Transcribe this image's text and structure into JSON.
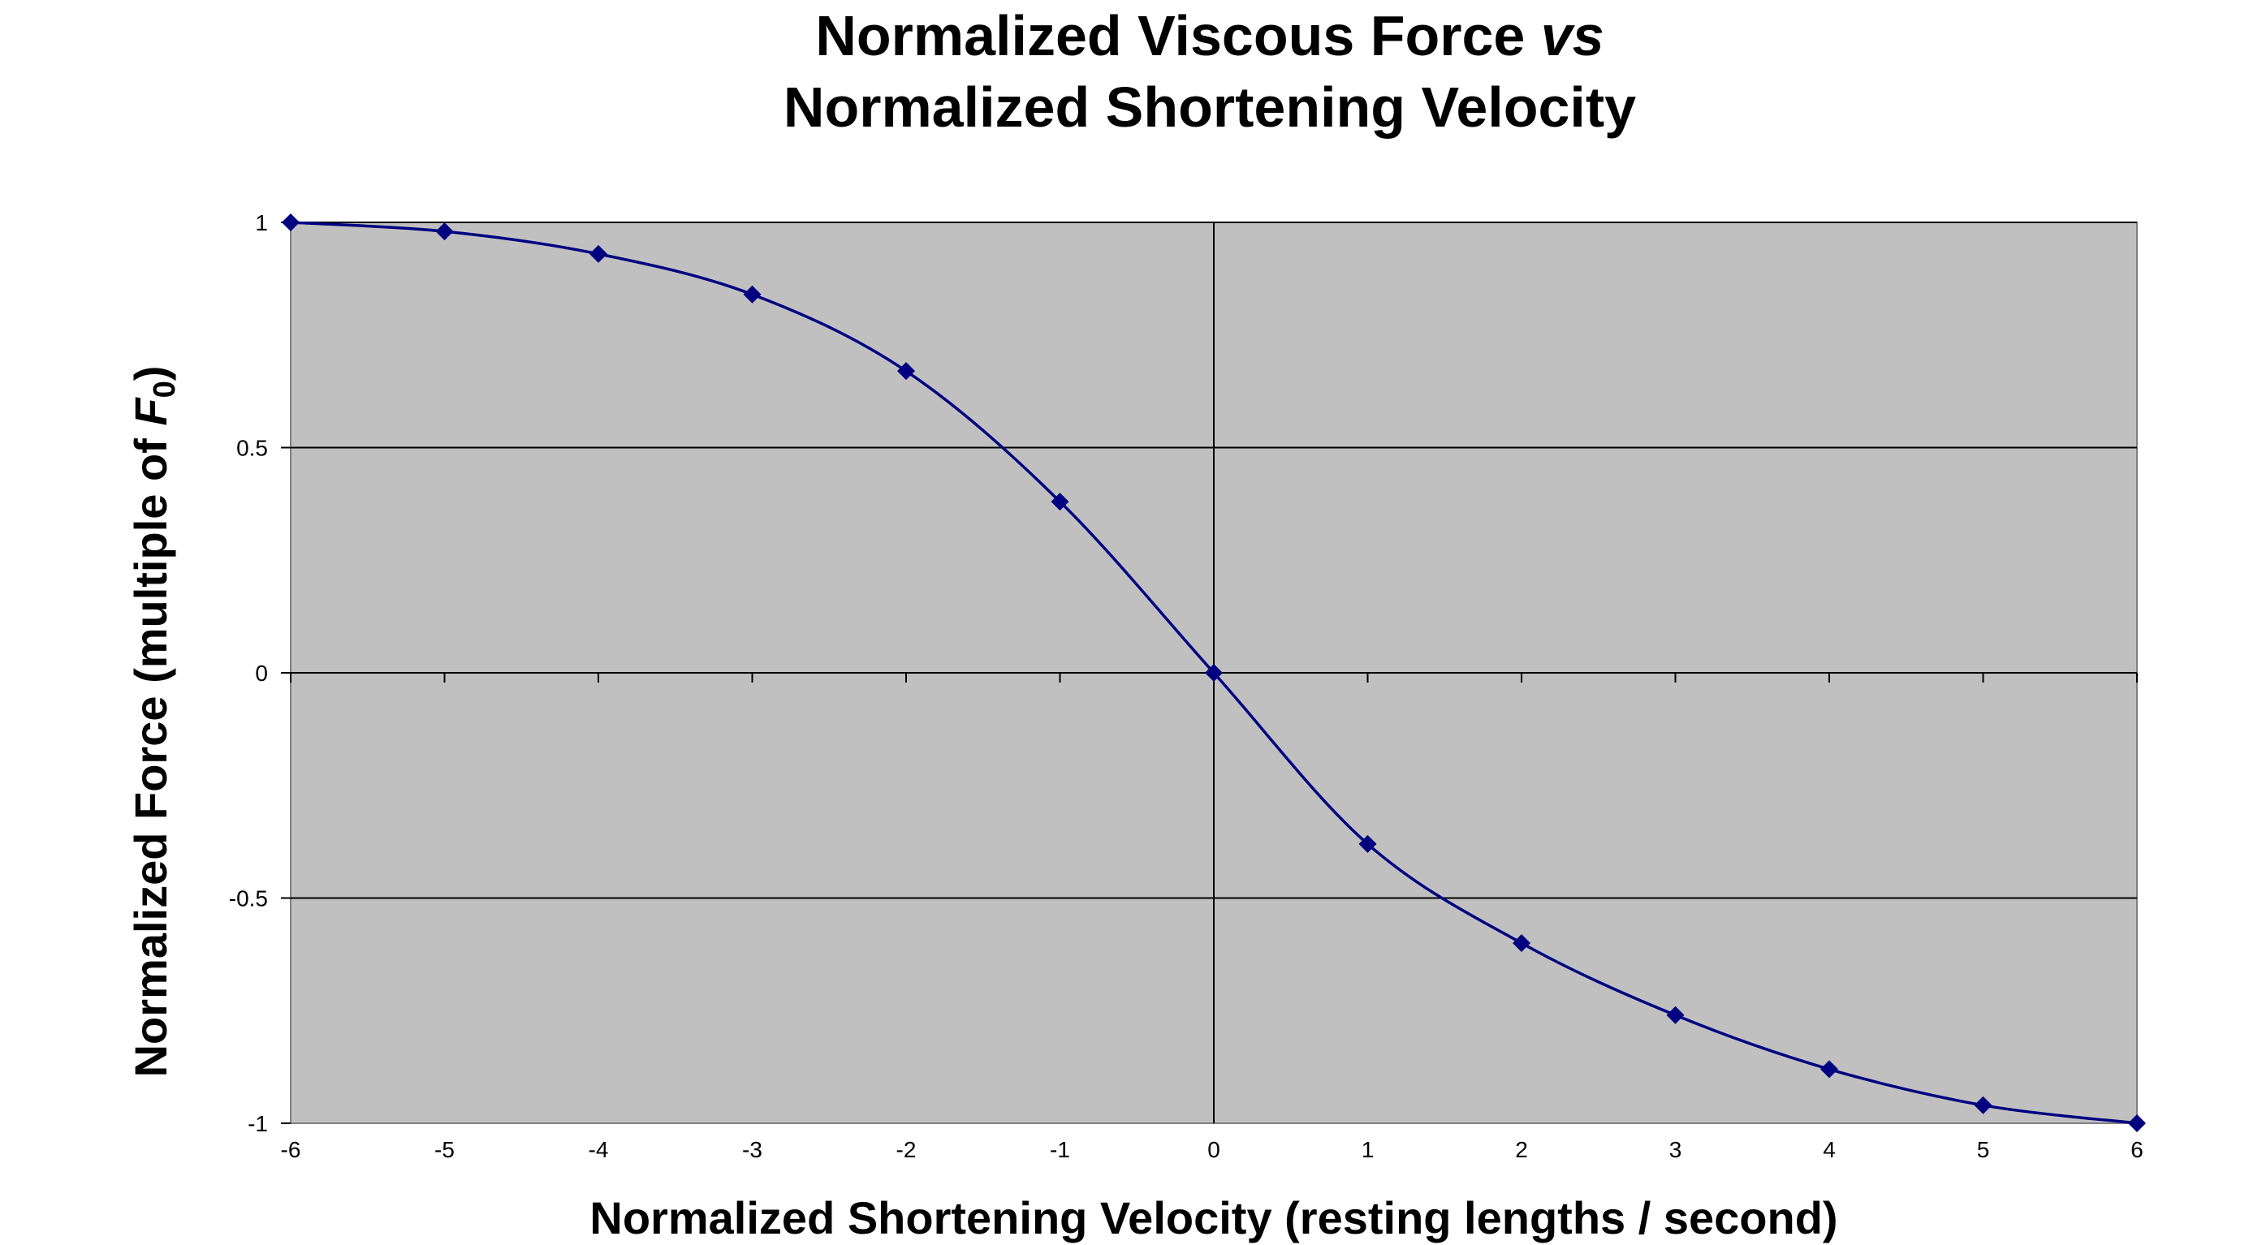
{
  "chart_data": {
    "type": "line",
    "title": "Normalized Viscous Force vs Normalized Shortening Velocity",
    "title_parts": {
      "line1_main": "Normalized Viscous Force ",
      "line1_italic": "vs",
      "line2": "Normalized Shortening Velocity"
    },
    "xlabel": "Normalized Shortening Velocity (resting lengths / second)",
    "ylabel_parts": {
      "main": "Normalized Force (multiple of ",
      "italic": "F",
      "sub": "0",
      "close": ")"
    },
    "xlim": [
      -6,
      6
    ],
    "ylim": [
      -1,
      1
    ],
    "x_ticks": [
      -6,
      -5,
      -4,
      -3,
      -2,
      -1,
      0,
      1,
      2,
      3,
      4,
      5,
      6
    ],
    "y_ticks": [
      -1,
      -0.5,
      0,
      0.5,
      1
    ],
    "grid": true,
    "legend": "none",
    "colors": {
      "plot_background": "#c0c0c0",
      "series": "#000080",
      "grid": "#000000"
    },
    "series": [
      {
        "marker": "diamond",
        "x": [
          -6,
          -5,
          -4,
          -3,
          -2,
          -1,
          0,
          1,
          2,
          3,
          4,
          5,
          6
        ],
        "y": [
          1.0,
          0.98,
          0.93,
          0.84,
          0.67,
          0.38,
          0.0,
          -0.38,
          -0.6,
          -0.76,
          -0.88,
          -0.96,
          -1.0
        ]
      }
    ]
  }
}
